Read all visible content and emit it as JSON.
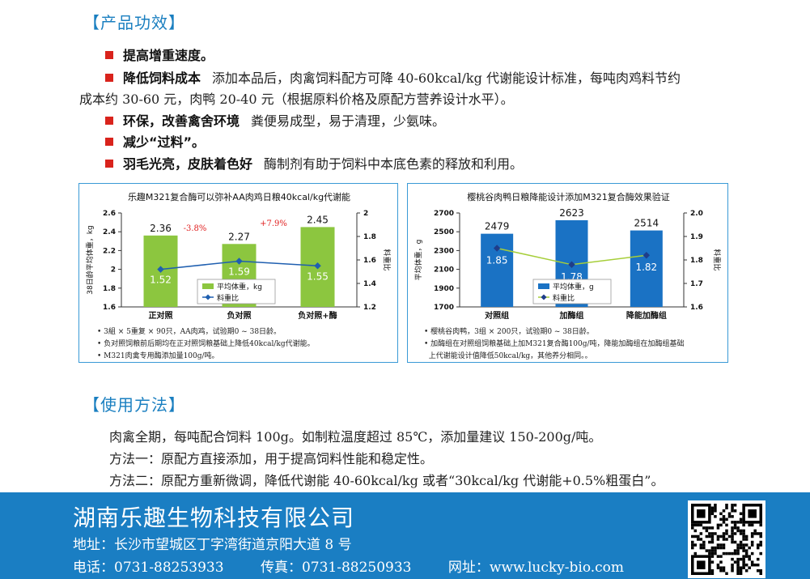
{
  "sections": {
    "efficacy_title": "【产品功效】",
    "usage_title": "【使用方法】"
  },
  "features": [
    {
      "title": "提高增重速度。",
      "desc": ""
    },
    {
      "title": "降低饲料成本",
      "desc": "添加本品后，肉禽饲料配方可降 40-60kcal/kg 代谢能设计标准，每吨肉鸡料节约",
      "desc2": "成本约 30-60 元，肉鸭 20-40 元（根据原料价格及原配方营养设计水平）。"
    },
    {
      "title": "环保，改善禽舍环境",
      "desc": "粪便易成型，易于清理，少氨味。"
    },
    {
      "title": "减少“过料”。",
      "desc": ""
    },
    {
      "title": "羽毛光亮，皮肤着色好",
      "desc": "酶制剂有助于饲料中本底色素的释放和利用。"
    }
  ],
  "chart_data": [
    {
      "type": "bar",
      "title": "乐趣M321复合酶可以弥补AA肉鸡日粮40kcal/kg代谢能",
      "categories": [
        "正对照",
        "负对照",
        "负对照+酶"
      ],
      "series": [
        {
          "name": "平均体重，kg",
          "type": "bar",
          "axis": "left",
          "values": [
            2.36,
            2.27,
            2.45
          ]
        },
        {
          "name": "料重比",
          "type": "line",
          "axis": "right",
          "values": [
            1.52,
            1.59,
            1.55
          ]
        }
      ],
      "annotations": [
        "-3.8%",
        "+7.9%"
      ],
      "ylabel": "38日龄平均体重，kg",
      "y2label": "料重比",
      "ylim": [
        1.6,
        2.6
      ],
      "y2lim": [
        1.2,
        2.0
      ],
      "yticks": [
        "2.6",
        "2.4",
        "2.2",
        "2",
        "1.8",
        "1.6"
      ],
      "y2ticks": [
        "2",
        "1.8",
        "1.6",
        "1.4",
        "1.2"
      ],
      "notes": [
        "• 3組 × 5重复 × 90只，AA肉鸡，试验期0 ~ 38日龄。",
        "• 负对照饲粮前后期均在正对照饲粮基础上降低40kcal/kg代谢能。",
        "• M321肉禽专用酶添加量100g/吨。"
      ],
      "colors": {
        "bar": "#8cc63f",
        "line": "#1f5fb0",
        "annotation": "#e02020"
      }
    },
    {
      "type": "bar",
      "title": "樱桃谷肉鸭日粮降能设计添加M321复合酶效果验证",
      "categories": [
        "对照组",
        "加酶组",
        "降能加酶组"
      ],
      "series": [
        {
          "name": "平均体重，g",
          "type": "bar",
          "axis": "left",
          "values": [
            2479,
            2623,
            2514
          ]
        },
        {
          "name": "料重比",
          "type": "line",
          "axis": "right",
          "values": [
            1.85,
            1.78,
            1.82
          ]
        }
      ],
      "ylabel": "平均体重，g",
      "y2label": "料重比",
      "ylim": [
        1700,
        2700
      ],
      "y2lim": [
        1.6,
        2.0
      ],
      "yticks": [
        "2700",
        "2500",
        "2300",
        "2100",
        "1900",
        "1700"
      ],
      "y2ticks": [
        "2.0",
        "1.9",
        "1.8",
        "1.7",
        "1.6"
      ],
      "notes": [
        "• 樱桃谷肉鸭，3组 × 200只，试验期0 ~ 38日龄。",
        "• 加酶组在对照组饲粮基础上加M321复合酶100g/吨，降能加酶组在加酶组基础",
        "  上代谢能设计值降低50kcal/kg，其他养分相同。。"
      ],
      "colors": {
        "bar": "#1a72c4",
        "line": "#a6ce39",
        "marker": "#1f3d8a"
      }
    }
  ],
  "usage": [
    "肉禽全期，每吨配合饲料 100g。如制粒温度超过 85℃，添加量建议 150-200g/吨。",
    "方法一：原配方直接添加，用于提高饲料性能和稳定性。",
    "方法二：原配方重新微调，降低代谢能 40-60kcal/kg 或者“30kcal/kg 代谢能+0.5%粗蛋白”。"
  ],
  "footer": {
    "company": "湖南乐趣生物科技有限公司",
    "address": "地址：长沙市望城区丁字湾街道京阳大道 8 号",
    "phone": "电话：0731-88253933",
    "fax": "传真：0731-88250933",
    "web": "网址：www.lucky-bio.com",
    "colors": {
      "band": "#1a7ec3"
    }
  }
}
